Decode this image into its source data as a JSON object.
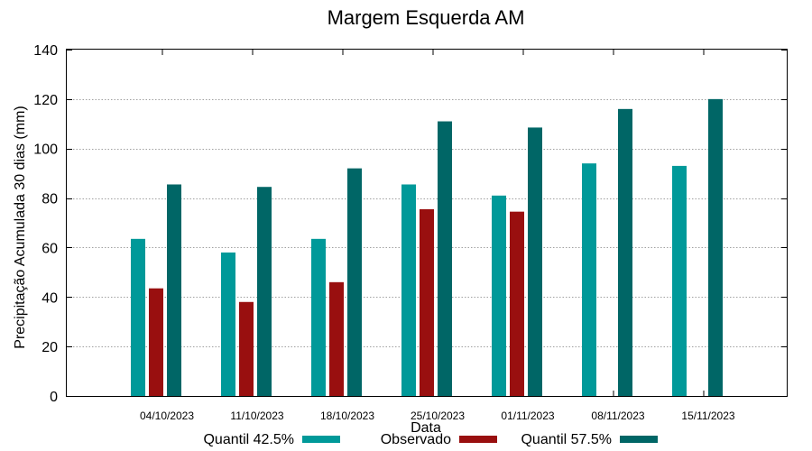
{
  "chart_data": {
    "type": "bar",
    "title": "Margem Esquerda AM",
    "xlabel": "Data",
    "ylabel": "Precipitação Acumulada 30 dias (mm)",
    "ylim": [
      0,
      140
    ],
    "yticks": [
      0,
      20,
      40,
      60,
      80,
      100,
      120,
      140
    ],
    "grid": true,
    "legend_position": "bottom",
    "categories": [
      "04/10/2023",
      "11/10/2023",
      "18/10/2023",
      "25/10/2023",
      "01/11/2023",
      "08/11/2023",
      "15/11/2023"
    ],
    "series": [
      {
        "name": "Quantil 42.5%",
        "color": "#009999",
        "values": [
          63.5,
          58,
          63.5,
          85.5,
          81,
          94,
          93
        ]
      },
      {
        "name": "Observado",
        "color": "#990f0f",
        "values": [
          43.5,
          38,
          46,
          75.5,
          74.5,
          null,
          null
        ]
      },
      {
        "name": "Quantil 57.5%",
        "color": "#006666",
        "values": [
          85.5,
          84.5,
          92,
          111,
          108.5,
          116,
          120
        ]
      }
    ]
  }
}
